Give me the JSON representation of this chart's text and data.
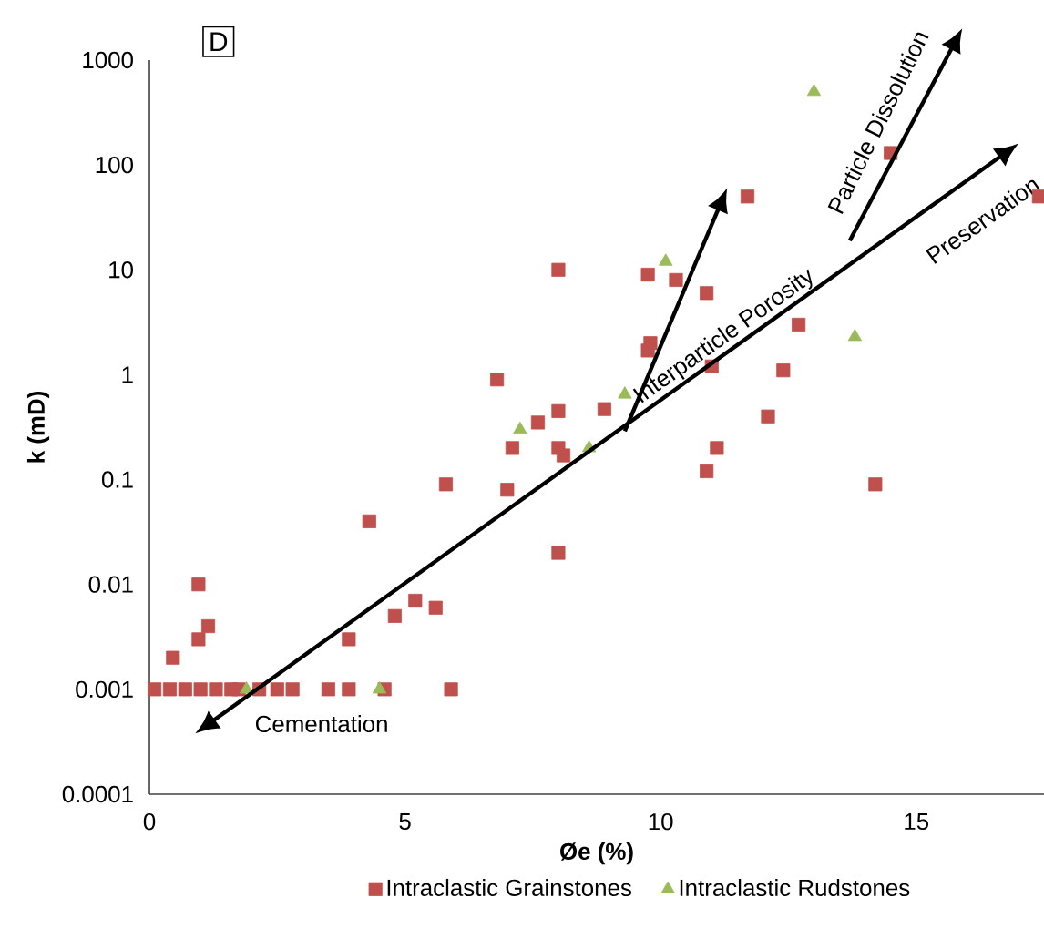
{
  "chart_data": {
    "type": "scatter",
    "xlabel": "**Øe (%)**",
    "ylabel": "**k (mD)**",
    "log": "y",
    "xlim": [
      0,
      17.5
    ],
    "ylim": [
      0.0001,
      1000
    ],
    "xticks": [
      0,
      5,
      10,
      15
    ],
    "yticks": [
      0.0001,
      0.001,
      0.01,
      0.1,
      1,
      10,
      100,
      1000
    ],
    "grid": false,
    "legend": "bottom",
    "annotations": [
      "D",
      "Cementation",
      "Interparticle Porosity",
      "Particle Dissolution",
      "Preservation"
    ],
    "series": [
      {
        "name": "Intraclastic Grainstones",
        "color": "#c0504d",
        "marker": "square",
        "x": [
          0.1,
          0.4,
          0.7,
          1.0,
          1.3,
          1.6,
          1.75,
          2.15,
          2.5,
          2.8,
          3.5,
          3.9,
          4.6,
          5.9,
          0.46,
          0.96,
          1.15,
          0.96,
          3.9,
          4.8,
          5.2,
          5.6,
          4.3,
          5.8,
          7.0,
          8.0,
          7.1,
          8.0,
          8.1,
          8.0,
          6.8,
          7.6,
          8.0,
          8.9,
          11.7,
          14.5,
          17.4,
          9.75,
          10.3,
          10.9,
          9.8,
          9.75,
          12.7,
          12.4,
          11.0,
          12.1,
          11.1,
          10.9,
          14.2
        ],
        "values": [
          0.001,
          0.001,
          0.001,
          0.001,
          0.001,
          0.001,
          0.001,
          0.001,
          0.001,
          0.001,
          0.001,
          0.001,
          0.001,
          0.001,
          0.002,
          0.003,
          0.004,
          0.01,
          0.003,
          0.005,
          0.007,
          0.006,
          0.04,
          0.09,
          0.08,
          0.02,
          0.2,
          0.2,
          0.17,
          10,
          0.9,
          0.35,
          0.45,
          0.47,
          50,
          130,
          50,
          9,
          8,
          6,
          2,
          1.7,
          3,
          1.1,
          1.2,
          0.4,
          0.2,
          0.12,
          0.09
        ]
      },
      {
        "name": "Intraclastic Rudstones",
        "color": "#9bbb59",
        "marker": "triangle",
        "x": [
          1.9,
          4.5,
          7.25,
          8.6,
          13.0,
          10.1,
          9.3,
          13.8
        ],
        "values": [
          0.001,
          0.001,
          0.3,
          0.2,
          500,
          12,
          0.65,
          2.3
        ]
      }
    ]
  }
}
